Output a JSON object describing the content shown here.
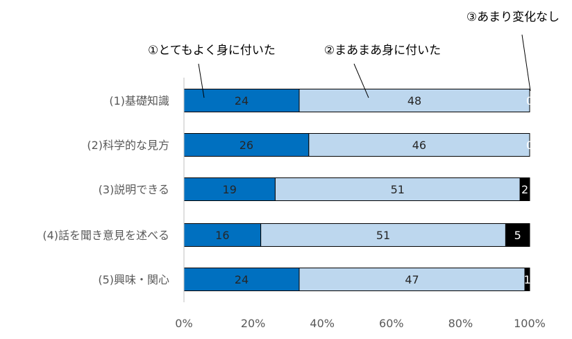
{
  "chart_data": {
    "type": "bar",
    "orientation": "horizontal",
    "stacked": "percent",
    "categories": [
      "(1)基礎知識",
      "(2)科学的な見方",
      "(3)説明できる",
      "(4)話を聞き意見を述べる",
      "(5)興味・関心"
    ],
    "series": [
      {
        "name": "①とてもよく身に付いた",
        "values": [
          24,
          26,
          19,
          16,
          24
        ],
        "color": "#0070c0",
        "label_color": "#262626"
      },
      {
        "name": "②まあまあ身に付いた",
        "values": [
          48,
          46,
          51,
          51,
          47
        ],
        "color": "#bdd7ee",
        "label_color": "#262626"
      },
      {
        "name": "③あまり変化なし",
        "values": [
          0,
          0,
          2,
          5,
          1
        ],
        "color": "#000000",
        "label_color": "#ffffff"
      }
    ],
    "xlim": [
      0,
      100
    ],
    "x_ticks": [
      "0%",
      "20%",
      "40%",
      "60%",
      "80%",
      "100%"
    ],
    "grid": false,
    "legend": "callouts-top"
  }
}
